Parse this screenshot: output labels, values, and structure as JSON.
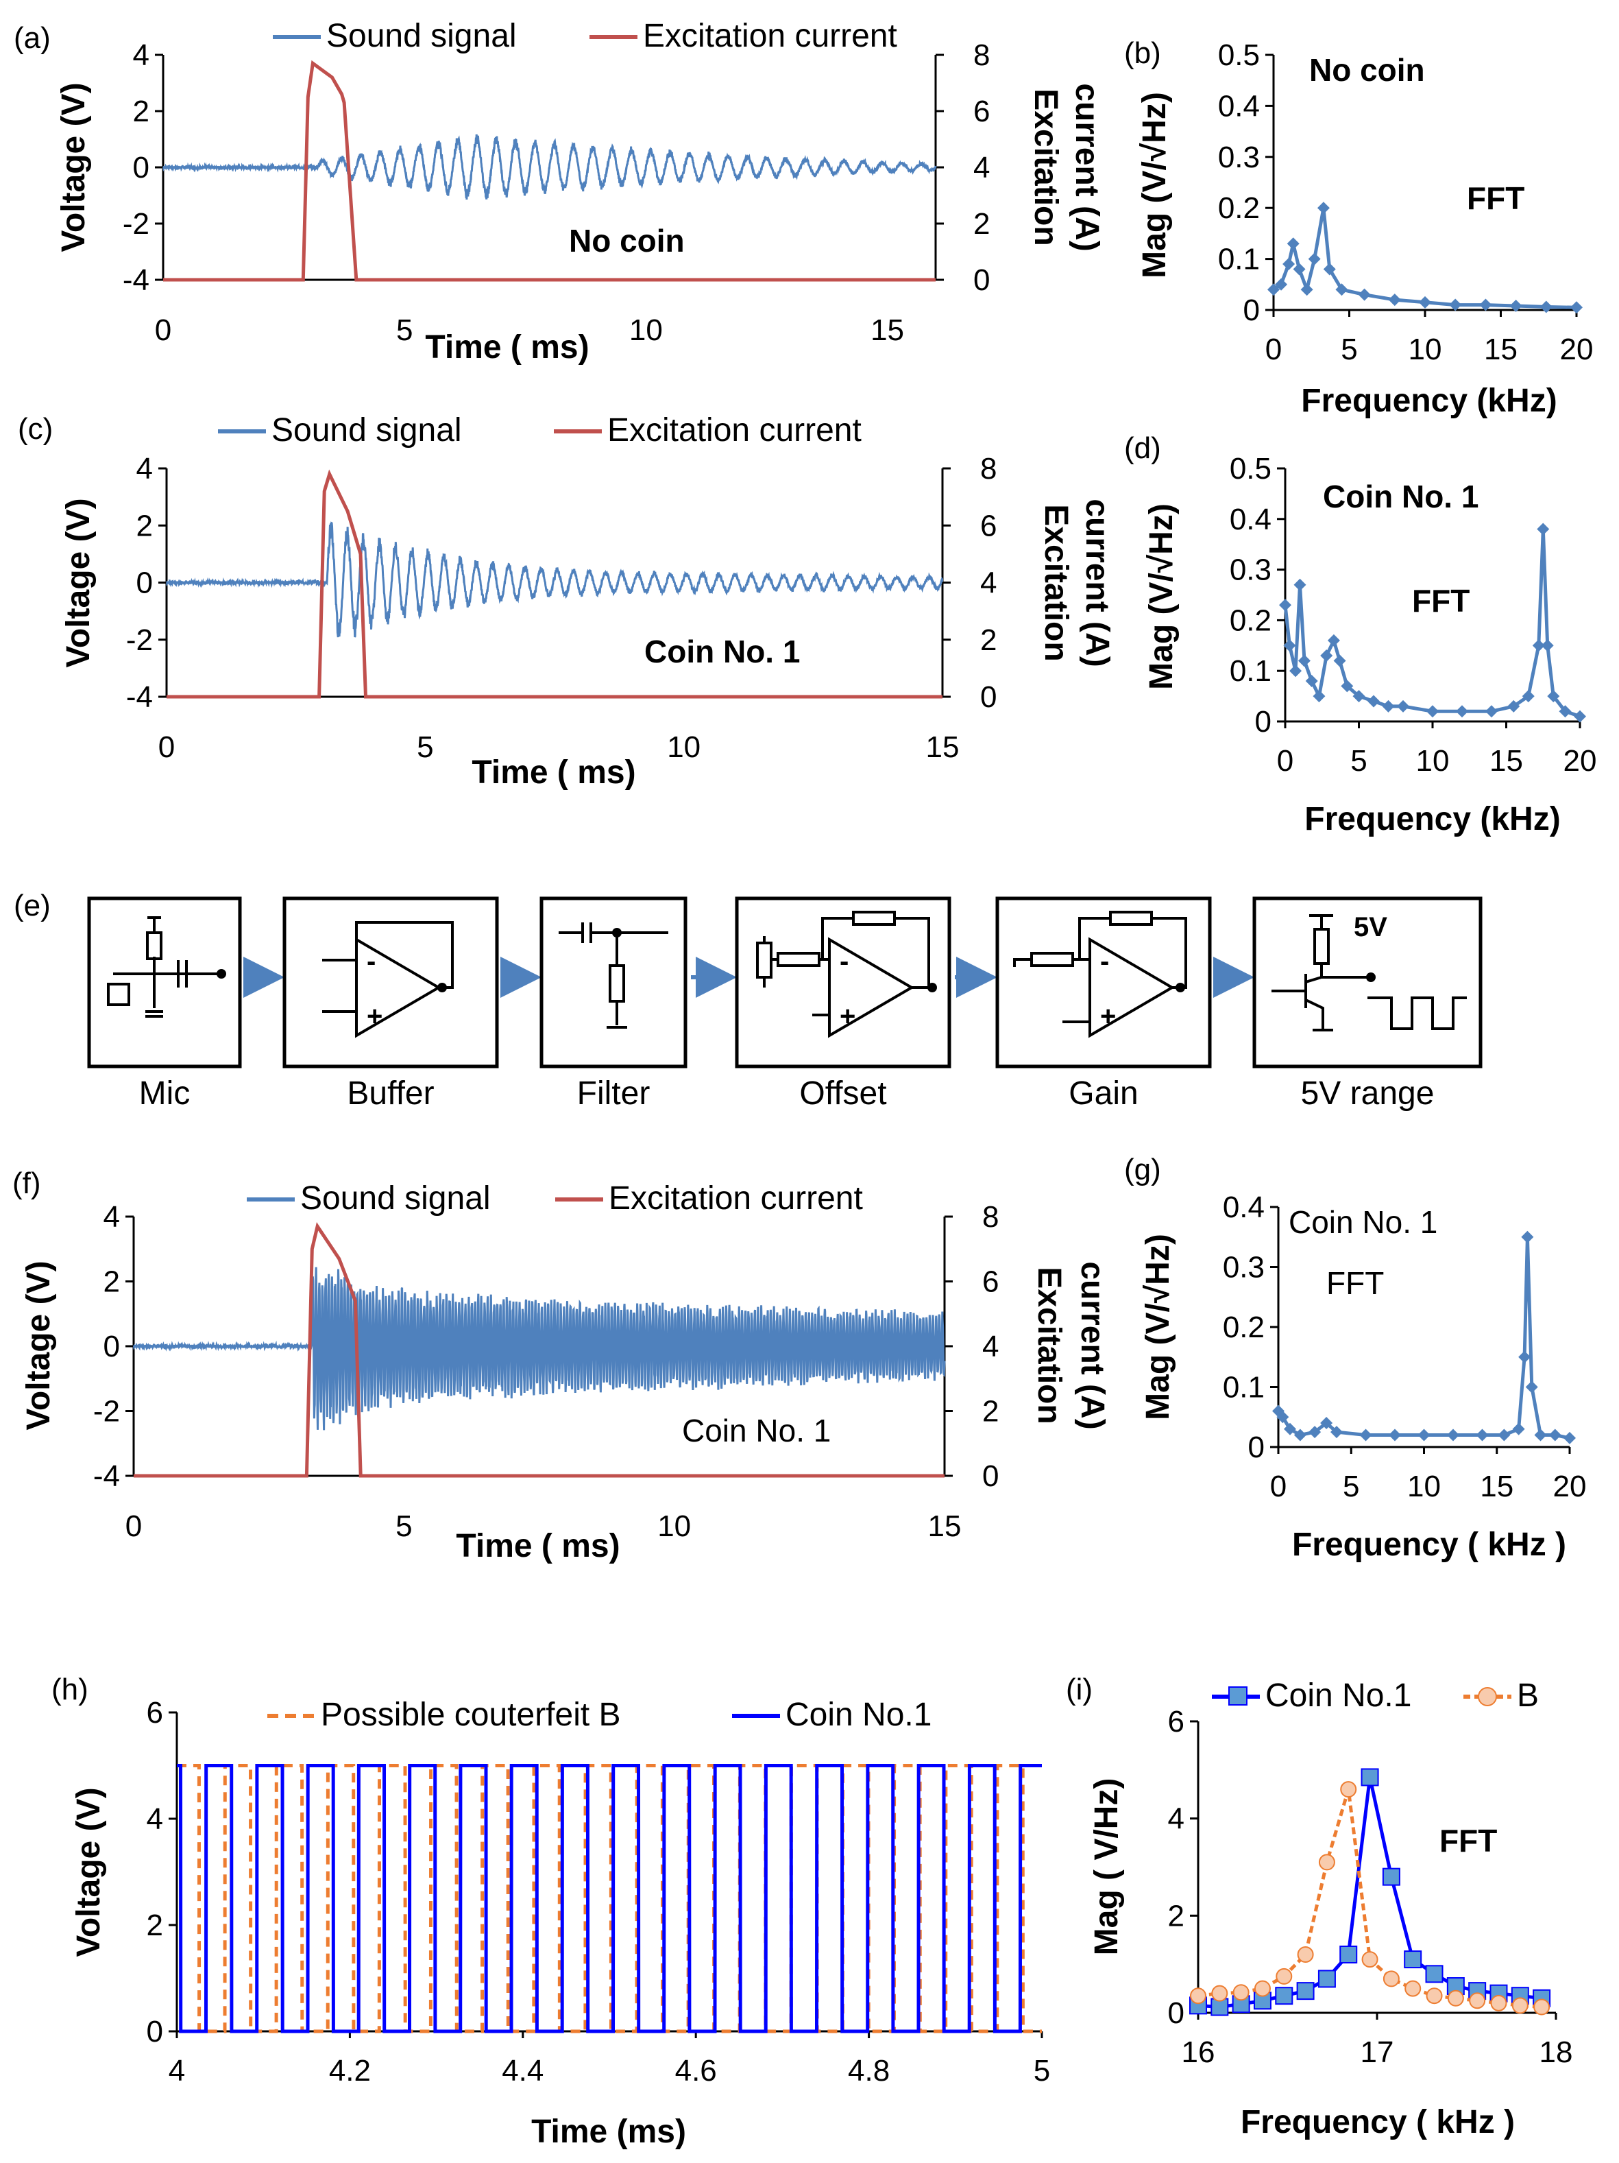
{
  "colors": {
    "sound": "#4f81bd",
    "current": "#c0504d",
    "axis": "#000000",
    "coin": "#0000ff",
    "counterfeit": "#ed7d31"
  },
  "chart_data": [
    {
      "id": "a",
      "panel_label": "(a)",
      "type": "line",
      "title": "",
      "annotation": "No coin",
      "xlabel": "Time ( ms)",
      "ylabel": "Voltage (V)",
      "y2label": [
        "Excitation",
        "current (A)"
      ],
      "xlim": [
        0,
        16
      ],
      "ylim": [
        -4,
        4
      ],
      "y2lim": [
        0,
        8
      ],
      "xticks": [
        0,
        5,
        10,
        15
      ],
      "yticks": [
        -4,
        -2,
        0,
        2,
        4
      ],
      "y2ticks": [
        0,
        2,
        4,
        6,
        8
      ],
      "legend": [
        "Sound signal",
        "Excitation current"
      ],
      "series": [
        {
          "name": "Sound signal",
          "axis": "y",
          "envelope": {
            "t0": 3.2,
            "amp": [
              0.2,
              1.0,
              0.6,
              0.3,
              0.1
            ],
            "freq_khz": 2.5,
            "noise": 0.05
          }
        },
        {
          "name": "Excitation current",
          "axis": "y2",
          "x": [
            0,
            2.9,
            3.0,
            3.1,
            3.5,
            3.7,
            3.75,
            4.0,
            16
          ],
          "values": [
            0,
            0,
            6.5,
            7.7,
            7.2,
            6.6,
            6.3,
            0,
            0
          ]
        }
      ]
    },
    {
      "id": "b",
      "panel_label": "(b)",
      "type": "line",
      "annotation": "No coin",
      "annotation2": "FFT",
      "xlabel": "Frequency (kHz)",
      "ylabel": "Mag (V/√Hz)",
      "xlim": [
        0,
        20
      ],
      "ylim": [
        0,
        0.5
      ],
      "xticks": [
        0,
        5,
        10,
        15,
        20
      ],
      "yticks": [
        0,
        0.1,
        0.2,
        0.3,
        0.4,
        0.5
      ],
      "series": [
        {
          "name": "FFT",
          "x": [
            0,
            0.5,
            1.0,
            1.3,
            1.7,
            2.2,
            2.7,
            3.3,
            3.7,
            4.5,
            6,
            8,
            10,
            12,
            14,
            16,
            18,
            20
          ],
          "values": [
            0.04,
            0.05,
            0.09,
            0.13,
            0.08,
            0.04,
            0.1,
            0.2,
            0.08,
            0.04,
            0.03,
            0.02,
            0.015,
            0.01,
            0.01,
            0.008,
            0.006,
            0.005
          ]
        }
      ]
    },
    {
      "id": "c",
      "panel_label": "(c)",
      "type": "line",
      "annotation": "Coin No. 1",
      "xlabel": "Time ( ms)",
      "ylabel": "Voltage (V)",
      "y2label": [
        "Excitation",
        "current (A)"
      ],
      "xlim": [
        0,
        15
      ],
      "ylim": [
        -4,
        4
      ],
      "y2lim": [
        0,
        8
      ],
      "xticks": [
        0,
        5,
        10,
        15
      ],
      "yticks": [
        -4,
        -2,
        0,
        2,
        4
      ],
      "y2ticks": [
        0,
        2,
        4,
        6,
        8
      ],
      "legend": [
        "Sound signal",
        "Excitation current"
      ],
      "series": [
        {
          "name": "Sound signal",
          "axis": "y",
          "envelope": {
            "t0": 3.1,
            "amp": [
              1.9,
              1.3,
              0.9,
              0.6,
              0.45,
              0.35,
              0.3,
              0.3,
              0.25,
              0.25,
              0.2,
              0.2
            ],
            "freq_khz": 3.2,
            "noise": 0.05
          }
        },
        {
          "name": "Excitation current",
          "axis": "y2",
          "x": [
            0,
            2.95,
            3.05,
            3.15,
            3.5,
            3.75,
            3.85,
            15
          ],
          "values": [
            0,
            0,
            7.2,
            7.8,
            6.5,
            5.0,
            0,
            0
          ]
        }
      ]
    },
    {
      "id": "d",
      "panel_label": "(d)",
      "type": "line",
      "annotation": "Coin No. 1",
      "annotation2": "FFT",
      "xlabel": "Frequency (kHz)",
      "ylabel": "Mag (V/√Hz)",
      "xlim": [
        0,
        20
      ],
      "ylim": [
        0,
        0.5
      ],
      "xticks": [
        0,
        5,
        10,
        15,
        20
      ],
      "yticks": [
        0,
        0.1,
        0.2,
        0.3,
        0.4,
        0.5
      ],
      "series": [
        {
          "name": "FFT",
          "x": [
            0,
            0.3,
            0.7,
            1.0,
            1.3,
            1.8,
            2.3,
            2.8,
            3.3,
            3.7,
            4.2,
            5,
            6,
            7,
            8,
            10,
            12,
            14,
            15.5,
            16.5,
            17.2,
            17.5,
            17.8,
            18.2,
            19,
            20
          ],
          "values": [
            0.23,
            0.15,
            0.1,
            0.27,
            0.12,
            0.08,
            0.05,
            0.13,
            0.16,
            0.12,
            0.07,
            0.05,
            0.04,
            0.03,
            0.03,
            0.02,
            0.02,
            0.02,
            0.03,
            0.05,
            0.15,
            0.38,
            0.15,
            0.05,
            0.02,
            0.01
          ]
        }
      ]
    },
    {
      "id": "f",
      "panel_label": "(f)",
      "type": "line",
      "annotation": "Coin No. 1",
      "xlabel": "Time ( ms)",
      "ylabel": "Voltage (V)",
      "y2label": [
        "Excitation",
        "current (A)"
      ],
      "xlim": [
        0,
        15
      ],
      "ylim": [
        -4,
        4
      ],
      "y2lim": [
        0,
        8
      ],
      "xticks": [
        0,
        5,
        10,
        15
      ],
      "yticks": [
        -4,
        -2,
        0,
        2,
        4
      ],
      "y2ticks": [
        0,
        2,
        4,
        6,
        8
      ],
      "legend": [
        "Sound signal",
        "Excitation current"
      ],
      "series": [
        {
          "name": "Sound signal",
          "axis": "y",
          "envelope": {
            "t0": 3.3,
            "amp": [
              2.3,
              1.7,
              1.5,
              1.4,
              1.3,
              1.2,
              1.15,
              1.1,
              1.05,
              1.0,
              0.95,
              0.9
            ],
            "freq_khz": 17,
            "noise": 0.05
          }
        },
        {
          "name": "Excitation current",
          "axis": "y2",
          "x": [
            0,
            3.2,
            3.3,
            3.4,
            3.8,
            4.1,
            4.2,
            15
          ],
          "values": [
            0,
            0,
            7.0,
            7.7,
            6.7,
            5.4,
            0,
            0
          ]
        }
      ]
    },
    {
      "id": "g",
      "panel_label": "(g)",
      "type": "line",
      "annotation": "Coin No. 1",
      "annotation2": "FFT",
      "xlabel": "Frequency ( kHz )",
      "ylabel": "Mag (V/√Hz)",
      "xlim": [
        0,
        20
      ],
      "ylim": [
        0,
        0.4
      ],
      "xticks": [
        0,
        5,
        10,
        15,
        20
      ],
      "yticks": [
        0,
        0.1,
        0.2,
        0.3,
        0.4
      ],
      "series": [
        {
          "name": "FFT",
          "x": [
            0,
            0.3,
            0.8,
            1.5,
            2.5,
            3.3,
            4,
            6,
            8,
            10,
            12,
            14,
            15.5,
            16.5,
            16.9,
            17.1,
            17.4,
            18,
            19,
            20
          ],
          "values": [
            0.06,
            0.05,
            0.03,
            0.02,
            0.025,
            0.04,
            0.025,
            0.02,
            0.02,
            0.02,
            0.02,
            0.02,
            0.02,
            0.03,
            0.15,
            0.35,
            0.1,
            0.02,
            0.02,
            0.015
          ]
        }
      ]
    },
    {
      "id": "h",
      "panel_label": "(h)",
      "type": "line",
      "xlabel": "Time (ms)",
      "ylabel": "Voltage (V)",
      "xlim": [
        4,
        5
      ],
      "ylim": [
        0,
        6
      ],
      "xticks": [
        4,
        4.2,
        4.4,
        4.6,
        4.8,
        5
      ],
      "yticks": [
        0,
        2,
        4,
        6
      ],
      "legend": [
        "Possible couterfeit B",
        "Coin No.1"
      ],
      "series": [
        {
          "name": "Possible couterfeit B",
          "style": "dashed",
          "square_wave": {
            "freq_khz": 16.8,
            "high": 5,
            "low": 0,
            "phase_ms": 0.004
          }
        },
        {
          "name": "Coin No.1",
          "style": "solid",
          "square_wave": {
            "freq_khz": 17.0,
            "high": 5,
            "low": 0,
            "phase_ms": 0.025
          }
        }
      ]
    },
    {
      "id": "i",
      "panel_label": "(i)",
      "type": "line",
      "annotation": "FFT",
      "xlabel": "Frequency ( kHz )",
      "ylabel": "Mag ( V/Hz)",
      "xlim": [
        16,
        18
      ],
      "ylim": [
        0,
        6
      ],
      "xticks": [
        16,
        17,
        18
      ],
      "yticks": [
        0,
        2,
        4,
        6
      ],
      "legend": [
        "Coin No.1",
        "B"
      ],
      "series": [
        {
          "name": "Coin No.1",
          "marker": "square",
          "x": [
            16.0,
            16.12,
            16.24,
            16.36,
            16.48,
            16.6,
            16.72,
            16.84,
            16.96,
            17.08,
            17.2,
            17.32,
            17.44,
            17.56,
            17.68,
            17.8,
            17.92
          ],
          "values": [
            0.15,
            0.12,
            0.18,
            0.25,
            0.35,
            0.45,
            0.7,
            1.2,
            4.85,
            2.8,
            1.1,
            0.8,
            0.55,
            0.45,
            0.4,
            0.35,
            0.3
          ]
        },
        {
          "name": "B",
          "marker": "circle",
          "x": [
            16.0,
            16.12,
            16.24,
            16.36,
            16.48,
            16.6,
            16.72,
            16.84,
            16.96,
            17.08,
            17.2,
            17.32,
            17.44,
            17.56,
            17.68,
            17.8,
            17.92
          ],
          "values": [
            0.35,
            0.4,
            0.42,
            0.5,
            0.75,
            1.2,
            3.1,
            4.6,
            1.1,
            0.7,
            0.5,
            0.35,
            0.3,
            0.25,
            0.2,
            0.15,
            0.12
          ]
        }
      ]
    }
  ],
  "block_diagram": {
    "panel_label": "(e)",
    "blocks": [
      {
        "label": "Mic"
      },
      {
        "label": "Buffer"
      },
      {
        "label": "Filter"
      },
      {
        "label": "Offset"
      },
      {
        "label": "Gain"
      },
      {
        "label": "5V range",
        "supply_label": "5V"
      }
    ],
    "opamp_minus": "-",
    "opamp_plus": "+"
  }
}
